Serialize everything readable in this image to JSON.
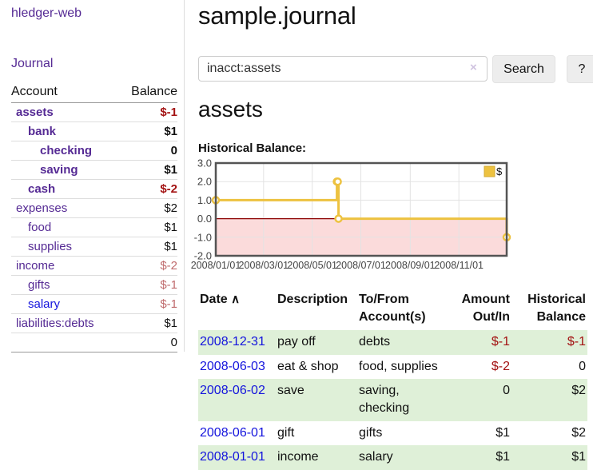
{
  "colors": {
    "link_purple": "#552a94",
    "link_blue": "#1414dd",
    "negative_strong": "#a31212",
    "negative_muted": "#bf6a6c",
    "row_stripe_green": "#dff0d8",
    "series_gold": "#edc240",
    "negative_region_pink": "#fbdbdb",
    "zero_line_dark_red": "#8b0000",
    "chart_border_gray": "#545454"
  },
  "sidebar": {
    "app_title": "hledger-web",
    "journal_label": "Journal",
    "accounts": {
      "header_account": "Account",
      "header_balance": "Balance",
      "rows": [
        {
          "name": "assets",
          "balance": "$-1",
          "level": 1,
          "bold": true,
          "link_color": "purple"
        },
        {
          "name": "bank",
          "balance": "$1",
          "level": 2,
          "bold": true,
          "link_color": "purple"
        },
        {
          "name": "checking",
          "balance": "0",
          "level": 3,
          "bold": true,
          "link_color": "purple"
        },
        {
          "name": "saving",
          "balance": "$1",
          "level": 3,
          "bold": true,
          "link_color": "purple"
        },
        {
          "name": "cash",
          "balance": "$-2",
          "level": 2,
          "bold": true,
          "link_color": "purple"
        },
        {
          "name": "expenses",
          "balance": "$2",
          "level": 1,
          "bold": false,
          "link_color": "purple"
        },
        {
          "name": "food",
          "balance": "$1",
          "level": 2,
          "bold": false,
          "link_color": "purple"
        },
        {
          "name": "supplies",
          "balance": "$1",
          "level": 2,
          "bold": false,
          "link_color": "purple"
        },
        {
          "name": "income",
          "balance": "$-2",
          "level": 1,
          "bold": false,
          "link_color": "purple"
        },
        {
          "name": "gifts",
          "balance": "$-1",
          "level": 2,
          "bold": false,
          "link_color": "purple"
        },
        {
          "name": "salary",
          "balance": "$-1",
          "level": 2,
          "bold": false,
          "link_color": "blue"
        },
        {
          "name": "liabilities:debts",
          "balance": "$1",
          "level": 1,
          "bold": false,
          "link_color": "purple"
        }
      ],
      "total": "0"
    }
  },
  "main": {
    "title": "sample.journal",
    "search": {
      "value": "inacct:assets",
      "clear_icon": "×",
      "button_label": "Search",
      "help_label": "?"
    },
    "account_heading": "assets",
    "chart_label": "Historical Balance:",
    "chart_data": {
      "type": "line",
      "step": true,
      "title": "Historical Balance",
      "legend": [
        {
          "label": "$",
          "color": "#edc240"
        }
      ],
      "legend_position": "top-right",
      "grid": true,
      "ylim": [
        -2,
        3
      ],
      "y_ticks": [
        {
          "value": 3,
          "label": "3.0"
        },
        {
          "value": 2,
          "label": "2.0"
        },
        {
          "value": 1,
          "label": "1.0"
        },
        {
          "value": 0,
          "label": "0.0"
        },
        {
          "value": -1,
          "label": "-1.0"
        },
        {
          "value": -2,
          "label": "-2.0"
        }
      ],
      "x_range": [
        "2008-01-01",
        "2008-12-31"
      ],
      "x_ticks": [
        {
          "date": "2008-01-01",
          "label": "2008/01/01"
        },
        {
          "date": "2008-03-01",
          "label": "2008/03/01"
        },
        {
          "date": "2008-05-01",
          "label": "2008/05/01"
        },
        {
          "date": "2008-07-01",
          "label": "2008/07/01"
        },
        {
          "date": "2008-09-01",
          "label": "2008/09/01"
        },
        {
          "date": "2008-11-01",
          "label": "2008/11/01"
        }
      ],
      "series": [
        {
          "name": "$",
          "color": "#edc240",
          "points": [
            {
              "x": "2008-01-01",
              "y": 1
            },
            {
              "x": "2008-06-01",
              "y": 2
            },
            {
              "x": "2008-06-02",
              "y": 2
            },
            {
              "x": "2008-06-03",
              "y": 0
            },
            {
              "x": "2008-12-31",
              "y": -1
            }
          ]
        }
      ],
      "negative_region_below": 0
    },
    "register": {
      "headers": {
        "date": "Date",
        "sort_indicator": "∧",
        "description": "Description",
        "accounts": "To/From\nAccount(s)",
        "amount": "Amount\nOut/In",
        "balance": "Historical\nBalance"
      },
      "rows": [
        {
          "date": "2008-12-31",
          "description": "pay off",
          "accounts": "debts",
          "amount": "$-1",
          "balance": "$-1"
        },
        {
          "date": "2008-06-03",
          "description": "eat & shop",
          "accounts": "food, supplies",
          "amount": "$-2",
          "balance": "0"
        },
        {
          "date": "2008-06-02",
          "description": "save",
          "accounts": "saving,\nchecking",
          "amount": "0",
          "balance": "$2"
        },
        {
          "date": "2008-06-01",
          "description": "gift",
          "accounts": "gifts",
          "amount": "$1",
          "balance": "$2"
        },
        {
          "date": "2008-01-01",
          "description": "income",
          "accounts": "salary",
          "amount": "$1",
          "balance": "$1"
        }
      ]
    }
  }
}
